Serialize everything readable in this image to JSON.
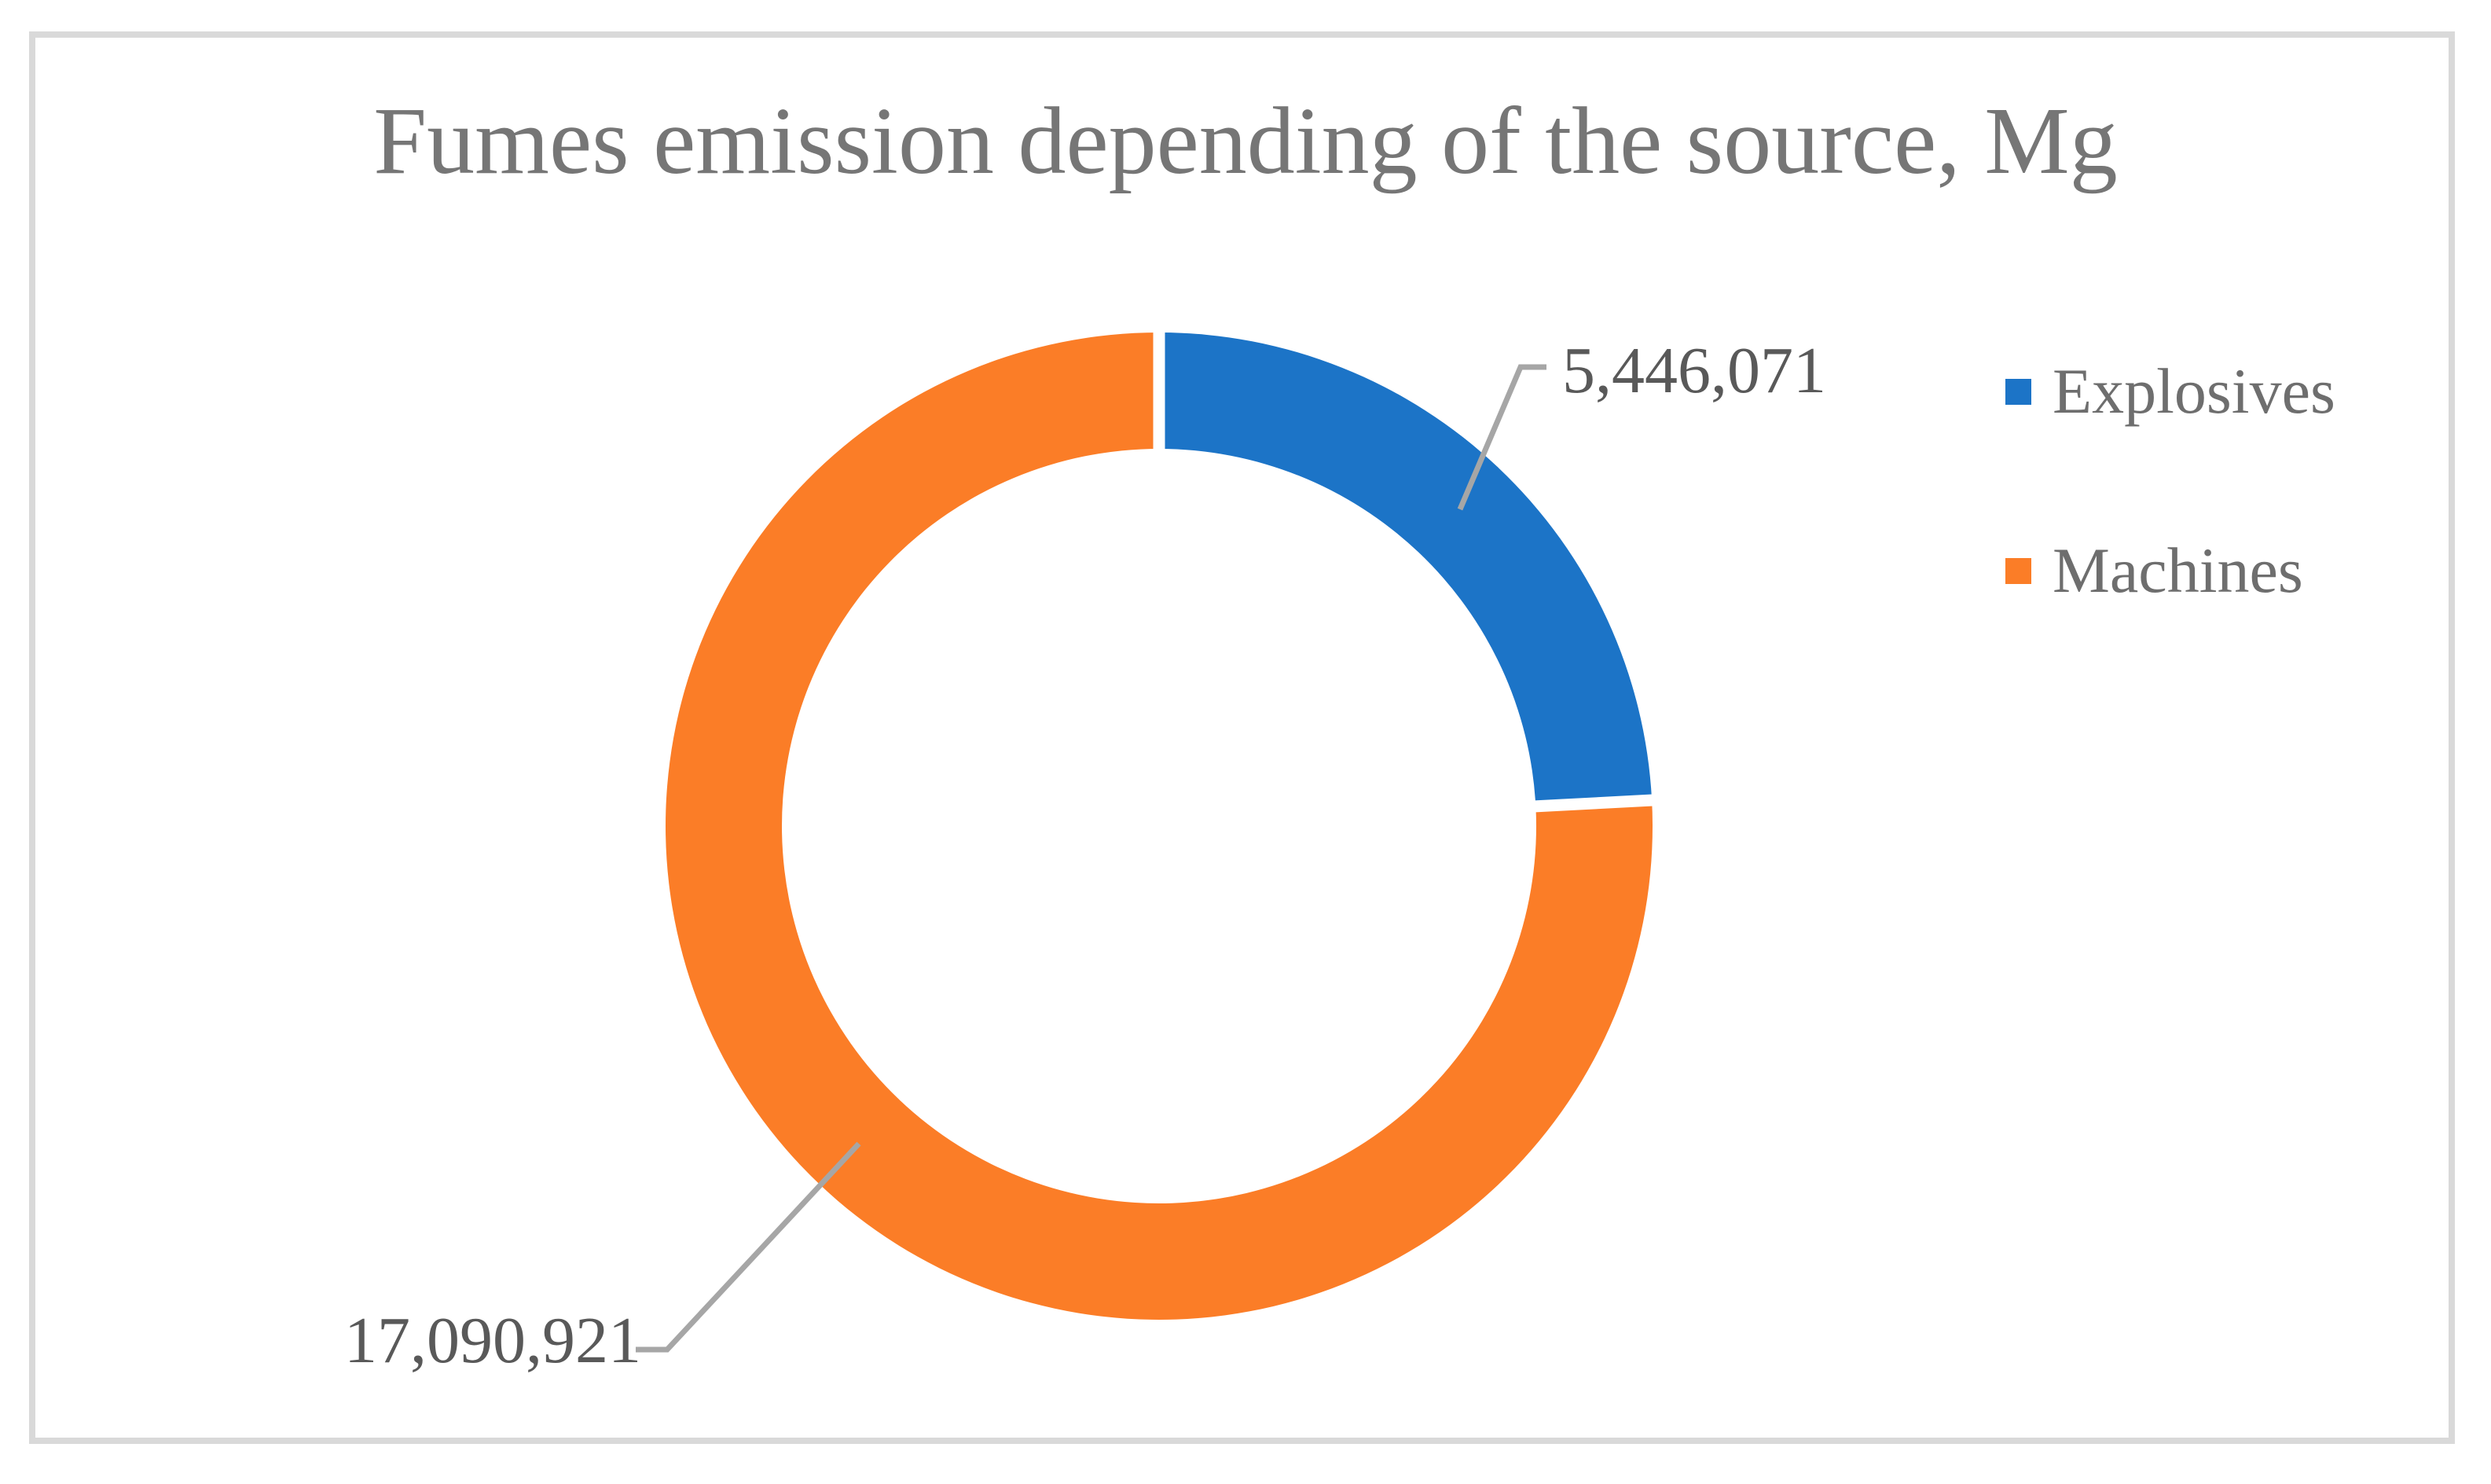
{
  "chart_data": {
    "type": "pie",
    "subtype": "donut",
    "title": "Fumes emission depending of the source, Mg",
    "categories": [
      "Explosives",
      "Machines"
    ],
    "values": [
      5446071,
      17090921
    ],
    "value_labels": [
      "5,446,071",
      "17,090,921"
    ],
    "colors": [
      "#1C74C7",
      "#FB7D27"
    ],
    "total": 22536992,
    "units": "Mg",
    "donut_hole_ratio": 0.76,
    "start_angle_deg": 0,
    "direction": "clockwise",
    "legend_position": "right",
    "grid": false
  },
  "theme": {
    "border_color": "#D9D9D9",
    "title_color": "#767676",
    "data_label_color": "#595959",
    "legend_text_color": "#6E6E6E",
    "leader_line_color": "#A6A6A6"
  }
}
